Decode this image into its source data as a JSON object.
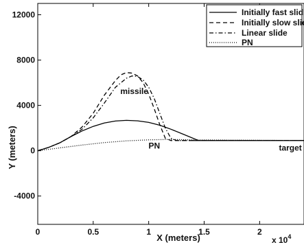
{
  "chart_data": {
    "type": "line",
    "xlabel": "X (meters)",
    "ylabel": "Y (meters)",
    "x_exponent_label": "x 10",
    "x_exponent_power": "4",
    "xlim": [
      0,
      2.4
    ],
    "ylim": [
      -6500,
      13000
    ],
    "x_ticks": [
      {
        "value": 0,
        "label": "0"
      },
      {
        "value": 0.5,
        "label": "0.5"
      },
      {
        "value": 1,
        "label": "1"
      },
      {
        "value": 1.5,
        "label": "1.5"
      },
      {
        "value": 2,
        "label": "2"
      }
    ],
    "y_ticks": [
      {
        "value": -4000,
        "label": "-4000"
      },
      {
        "value": 0,
        "label": "0"
      },
      {
        "value": 4000,
        "label": "4000"
      },
      {
        "value": 8000,
        "label": "8000"
      },
      {
        "value": 12000,
        "label": "12000"
      }
    ],
    "grid": false,
    "legend_position": "top-right",
    "series": [
      {
        "name": "Initially fast slide",
        "style": "solid",
        "x": [
          0,
          0.1,
          0.2,
          0.3,
          0.4,
          0.5,
          0.6,
          0.7,
          0.8,
          0.9,
          1.0,
          1.1,
          1.2,
          1.3,
          1.45,
          2.4
        ],
        "y": [
          0,
          300,
          700,
          1250,
          1750,
          2150,
          2450,
          2620,
          2680,
          2640,
          2500,
          2250,
          1900,
          1500,
          900,
          900
        ]
      },
      {
        "name": "Initially slow slide",
        "style": "dashed",
        "x": [
          0,
          0.1,
          0.2,
          0.3,
          0.4,
          0.5,
          0.6,
          0.7,
          0.75,
          0.8,
          0.85,
          0.9,
          0.95,
          1.0,
          1.05,
          1.1,
          1.15,
          1.2,
          1.45,
          2.4
        ],
        "y": [
          0,
          300,
          700,
          1250,
          2100,
          3300,
          4900,
          6200,
          6700,
          6900,
          6850,
          6600,
          6000,
          5000,
          3700,
          2300,
          1100,
          900,
          900,
          900
        ]
      },
      {
        "name": "Linear slide",
        "style": "dashdot",
        "x": [
          0,
          0.1,
          0.2,
          0.3,
          0.4,
          0.5,
          0.6,
          0.7,
          0.8,
          0.85,
          0.9,
          0.95,
          1.0,
          1.05,
          1.1,
          1.15,
          1.2,
          1.25,
          1.45,
          2.4
        ],
        "y": [
          0,
          300,
          700,
          1250,
          1900,
          2900,
          4200,
          5600,
          6400,
          6600,
          6550,
          6250,
          5600,
          4600,
          3300,
          2000,
          1100,
          900,
          900,
          900
        ]
      },
      {
        "name": "PN",
        "style": "dotted",
        "x": [
          0,
          0.2,
          0.4,
          0.6,
          0.8,
          1.0,
          1.2,
          1.45,
          2.4
        ],
        "y": [
          0,
          250,
          500,
          720,
          870,
          960,
          1000,
          950,
          900
        ]
      }
    ],
    "annotations": [
      {
        "text": "missile",
        "x": 0.87,
        "y": 5000
      },
      {
        "text": "PN",
        "x": 1.05,
        "y": 200
      },
      {
        "text": "target",
        "x": 2.38,
        "y": 0
      }
    ]
  }
}
